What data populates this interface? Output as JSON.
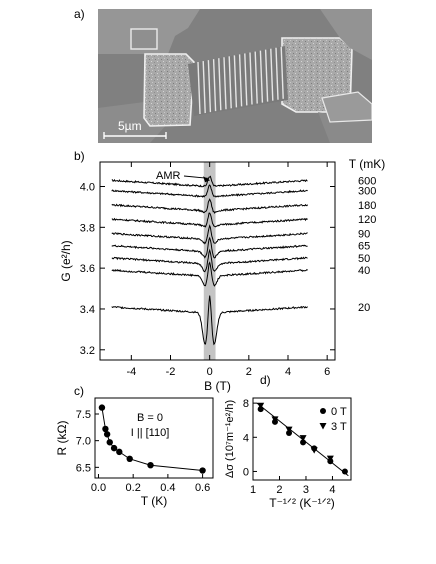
{
  "panels": {
    "a": {
      "label": "a)",
      "scale_bar_label": "5µm"
    },
    "b": {
      "label": "b)"
    },
    "c": {
      "label": "c)"
    },
    "d": {
      "label": "d)"
    }
  },
  "chart_data": [
    {
      "panel": "b",
      "type": "line",
      "xlabel": "B (T)",
      "ylabel": "G (e²/h)",
      "xlim": [
        -5.6,
        6.4
      ],
      "ylim": [
        3.15,
        4.12
      ],
      "x_ticks": [
        "-4",
        "-2",
        "0",
        "2",
        "4",
        "6"
      ],
      "x_tick_values": [
        -4,
        -2,
        0,
        2,
        4,
        6
      ],
      "y_ticks": [
        "3.2",
        "3.4",
        "3.6",
        "3.8",
        "4.0"
      ],
      "y_tick_values": [
        3.2,
        3.4,
        3.6,
        3.8,
        4.0
      ],
      "legend_title": "T (mK)",
      "annotation": "AMR",
      "shaded_band": [
        -0.3,
        0.3
      ],
      "x_range": [
        -5,
        5
      ],
      "series": [
        {
          "name": "600",
          "base": 4.0,
          "dip": 0.0,
          "peak": 0.05,
          "wing": 0.03
        },
        {
          "name": "300",
          "base": 3.95,
          "dip": 0.0,
          "peak": 0.055,
          "wing": 0.03
        },
        {
          "name": "180",
          "base": 3.88,
          "dip": 0.01,
          "peak": 0.06,
          "wing": 0.03
        },
        {
          "name": "120",
          "base": 3.81,
          "dip": 0.01,
          "peak": 0.065,
          "wing": 0.03
        },
        {
          "name": "90",
          "base": 3.74,
          "dip": 0.02,
          "peak": 0.07,
          "wing": 0.03
        },
        {
          "name": "65",
          "base": 3.68,
          "dip": 0.03,
          "peak": 0.075,
          "wing": 0.03
        },
        {
          "name": "50",
          "base": 3.62,
          "dip": 0.04,
          "peak": 0.08,
          "wing": 0.03
        },
        {
          "name": "40",
          "base": 3.56,
          "dip": 0.05,
          "peak": 0.085,
          "wing": 0.03
        },
        {
          "name": "20",
          "base": 3.38,
          "dip": 0.16,
          "peak": 0.13,
          "wing": 0.03
        }
      ]
    },
    {
      "panel": "c",
      "type": "line",
      "xlabel": "T (K)",
      "ylabel": "R (kΩ)",
      "xlim": [
        -0.02,
        0.66
      ],
      "ylim": [
        6.3,
        7.8
      ],
      "x_ticks": [
        "0.0",
        "0.2",
        "0.4",
        "0.6"
      ],
      "x_tick_values": [
        0.0,
        0.2,
        0.4,
        0.6
      ],
      "y_ticks": [
        "6.5",
        "7.0",
        "7.5"
      ],
      "y_tick_values": [
        6.5,
        7.0,
        7.5
      ],
      "annotations": [
        "B = 0",
        "I || [110]"
      ],
      "x": [
        0.02,
        0.04,
        0.05,
        0.065,
        0.09,
        0.12,
        0.18,
        0.3,
        0.6
      ],
      "y": [
        7.62,
        7.22,
        7.12,
        6.97,
        6.86,
        6.79,
        6.66,
        6.54,
        6.44
      ]
    },
    {
      "panel": "d",
      "type": "scatter",
      "xlabel": "T⁻¹ᐟ² (K⁻¹ᐟ²)",
      "ylabel": "Δσ (10⁷m⁻¹e²/h)",
      "xlim": [
        1.0,
        4.7
      ],
      "ylim": [
        -1.0,
        8.6
      ],
      "x_ticks": [
        "1",
        "2",
        "3",
        "4"
      ],
      "x_tick_values": [
        1,
        2,
        3,
        4
      ],
      "y_ticks": [
        "0",
        "4",
        "8"
      ],
      "y_tick_values": [
        0,
        4,
        8
      ],
      "fit_line": {
        "x": [
          1.15,
          4.6
        ],
        "y": [
          8.0,
          -0.5
        ]
      },
      "series": [
        {
          "name": "0 T",
          "marker": "circle",
          "x": [
            1.29,
            1.83,
            2.36,
            2.89,
            3.31,
            3.92,
            4.47
          ],
          "y": [
            7.3,
            5.8,
            4.5,
            3.4,
            2.7,
            1.2,
            0.0
          ]
        },
        {
          "name": "3 T",
          "marker": "triangle-down",
          "x": [
            1.29,
            1.83,
            2.36,
            2.89,
            3.31,
            3.92
          ],
          "y": [
            7.7,
            6.1,
            4.9,
            3.9,
            2.5,
            1.5
          ]
        }
      ]
    }
  ]
}
